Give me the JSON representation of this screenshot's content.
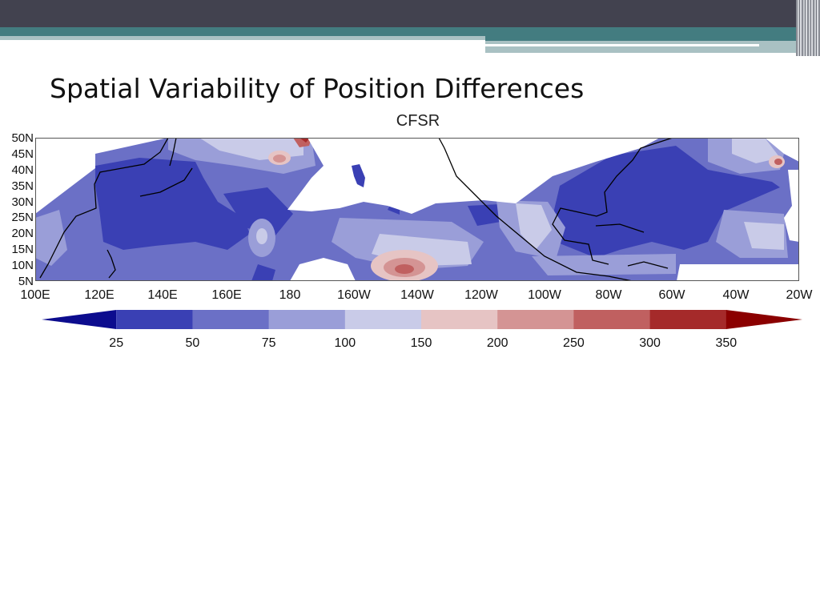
{
  "slide": {
    "title": "Spatial Variability of Position Differences",
    "theme_colors": {
      "header_dark": "#42424f",
      "header_teal": "#437c80",
      "header_light": "#a9c1c3"
    }
  },
  "map": {
    "title": "CFSR",
    "lat_labels": [
      "50N",
      "45N",
      "40N",
      "35N",
      "30N",
      "25N",
      "20N",
      "15N",
      "10N",
      "5N"
    ],
    "lon_labels": [
      "100E",
      "120E",
      "140E",
      "160E",
      "180",
      "160W",
      "140W",
      "120W",
      "100W",
      "80W",
      "60W",
      "40W",
      "20W"
    ],
    "lat_range": [
      5,
      50
    ],
    "lon_range": [
      "100E",
      "20W"
    ],
    "colorbar": {
      "levels": [
        "25",
        "50",
        "75",
        "100",
        "150",
        "200",
        "250",
        "300",
        "350"
      ],
      "colors": [
        "#0c0c8e",
        "#3a40b4",
        "#6b70c6",
        "#9a9ed8",
        "#c9cbe8",
        "#e6c4c4",
        "#d49494",
        "#c06060",
        "#a52a2a",
        "#8b0000"
      ]
    }
  }
}
